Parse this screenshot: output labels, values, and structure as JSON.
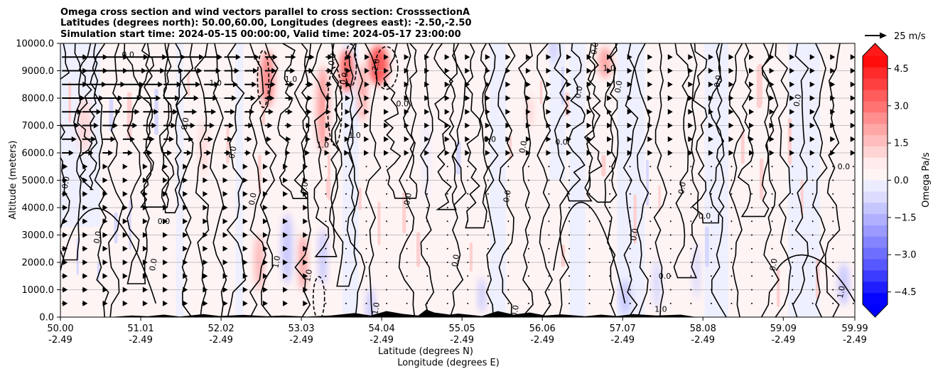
{
  "chart_data": {
    "type": "contour",
    "title_lines": [
      "Omega cross section and wind vectors parallel to cross section: CrosssectionA",
      "Latitudes (degrees north): 50.00,60.00, Longitudes (degrees east): -2.50,-2.50",
      "Simulation start time: 2024-05-15 00:00:00, Valid time: 2024-05-17 23:00:00"
    ],
    "ylabel": "Altitude (meters)",
    "xlabel_lat": "Latitude (degrees N)",
    "xlabel_lon": "Longitude (degrees E)",
    "ylim": [
      0,
      10000
    ],
    "xlim": [
      50.0,
      59.99
    ],
    "yticks": [
      "0.0",
      "1000.0",
      "2000.0",
      "3000.0",
      "4000.0",
      "5000.0",
      "6000.0",
      "7000.0",
      "8000.0",
      "9000.0",
      "10000.0"
    ],
    "xticks": [
      {
        "lat": 50.0,
        "lat_label": "50.00",
        "lon_label": "-2.49"
      },
      {
        "lat": 51.01,
        "lat_label": "51.01",
        "lon_label": "-2.49"
      },
      {
        "lat": 52.02,
        "lat_label": "52.02",
        "lon_label": "-2.49"
      },
      {
        "lat": 53.03,
        "lat_label": "53.03",
        "lon_label": "-2.49"
      },
      {
        "lat": 54.04,
        "lat_label": "54.04",
        "lon_label": "-2.49"
      },
      {
        "lat": 55.05,
        "lat_label": "55.05",
        "lon_label": "-2.49"
      },
      {
        "lat": 56.06,
        "lat_label": "56.06",
        "lon_label": "-2.49"
      },
      {
        "lat": 57.07,
        "lat_label": "57.07",
        "lon_label": "-2.49"
      },
      {
        "lat": 58.08,
        "lat_label": "58.08",
        "lon_label": "-2.49"
      },
      {
        "lat": 59.09,
        "lat_label": "59.09",
        "lon_label": "-2.49"
      },
      {
        "lat": 59.99,
        "lat_label": "59.99",
        "lon_label": "-2.49"
      }
    ],
    "colorbar": {
      "label": "Omega Pa/s",
      "range": [
        -5.0,
        5.0
      ],
      "ticks": [
        "4.5",
        "3.0",
        "1.5",
        "0.0",
        "−1.5",
        "−3.0",
        "−4.5"
      ],
      "tick_values": [
        4.5,
        3.0,
        1.5,
        0.0,
        -1.5,
        -3.0,
        -4.5
      ],
      "colors_top_to_bottom": [
        "#ff0d0d",
        "#ff2a2a",
        "#ff4040",
        "#ff5c5c",
        "#ff7373",
        "#ff8f8f",
        "#ffa6a6",
        "#ffbdbd",
        "#ffd4d4",
        "#ffebeb",
        "#fff4f4",
        "#ececff",
        "#dcdcff",
        "#c6c6ff",
        "#b0b0ff",
        "#9a9aff",
        "#8484ff",
        "#6e6eff",
        "#5858ff",
        "#3c3cff",
        "#1e1eff",
        "#0505ff"
      ],
      "extend_top_color": "#ff1a1a",
      "extend_bottom_color": "#0000ff"
    },
    "quiver_key": {
      "label": "25 m/s",
      "speed": 25
    },
    "contour_labels": [
      {
        "lat": 50.85,
        "alt": 9500,
        "text": "0.0"
      },
      {
        "lat": 50.1,
        "alt": 4900,
        "text": "0.0"
      },
      {
        "lat": 50.5,
        "alt": 2900,
        "text": "0.0"
      },
      {
        "lat": 51.3,
        "alt": 3400,
        "text": "0.0"
      },
      {
        "lat": 51.2,
        "alt": 1900,
        "text": "0.0"
      },
      {
        "lat": 51.6,
        "alt": 7050,
        "text": "0.0"
      },
      {
        "lat": 51.95,
        "alt": 8450,
        "text": "1.0"
      },
      {
        "lat": 52.2,
        "alt": 6000,
        "text": "0.0"
      },
      {
        "lat": 52.45,
        "alt": 4300,
        "text": "0.0"
      },
      {
        "lat": 52.9,
        "alt": 8600,
        "text": "1.0"
      },
      {
        "lat": 52.75,
        "alt": 2000,
        "text": "1.0"
      },
      {
        "lat": 53.1,
        "alt": 4700,
        "text": "0.0"
      },
      {
        "lat": 53.3,
        "alt": 6200,
        "text": "1.0"
      },
      {
        "lat": 53.15,
        "alt": 1500,
        "text": "1.0"
      },
      {
        "lat": 53.45,
        "alt": 9400,
        "text": "0.0"
      },
      {
        "lat": 53.7,
        "alt": 6550,
        "text": "1.0"
      },
      {
        "lat": 53.6,
        "alt": 8700,
        "text": "0.0"
      },
      {
        "lat": 54.0,
        "alt": 9200,
        "text": "2.0"
      },
      {
        "lat": 54.3,
        "alt": 7700,
        "text": "0.0"
      },
      {
        "lat": 54.4,
        "alt": 4300,
        "text": "0.0"
      },
      {
        "lat": 55.0,
        "alt": 2050,
        "text": "0.0"
      },
      {
        "lat": 55.4,
        "alt": 6400,
        "text": "0.0"
      },
      {
        "lat": 55.65,
        "alt": 4400,
        "text": "0.0"
      },
      {
        "lat": 55.85,
        "alt": 6200,
        "text": "0.0"
      },
      {
        "lat": 56.3,
        "alt": 6300,
        "text": "0.0"
      },
      {
        "lat": 56.55,
        "alt": 8200,
        "text": "0.0"
      },
      {
        "lat": 56.75,
        "alt": 9800,
        "text": "0.0"
      },
      {
        "lat": 56.9,
        "alt": 9000,
        "text": "1.0"
      },
      {
        "lat": 57.05,
        "alt": 8400,
        "text": "0.0"
      },
      {
        "lat": 57.25,
        "alt": 3000,
        "text": "0.0"
      },
      {
        "lat": 57.6,
        "alt": 1400,
        "text": "0.0"
      },
      {
        "lat": 57.85,
        "alt": 4700,
        "text": "0.0"
      },
      {
        "lat": 58.3,
        "alt": 8600,
        "text": "0.0"
      },
      {
        "lat": 58.1,
        "alt": 3600,
        "text": "0.0"
      },
      {
        "lat": 59.0,
        "alt": 1900,
        "text": "0.0"
      },
      {
        "lat": 59.3,
        "alt": 7900,
        "text": "0.0"
      },
      {
        "lat": 59.85,
        "alt": 5400,
        "text": "0.0"
      },
      {
        "lat": 59.85,
        "alt": 900,
        "text": "1.0"
      },
      {
        "lat": 55.75,
        "alt": 200,
        "text": "0.0"
      },
      {
        "lat": 57.55,
        "alt": 200,
        "text": "1.0"
      },
      {
        "lat": 54.0,
        "alt": 300,
        "text": "1.0"
      }
    ]
  }
}
